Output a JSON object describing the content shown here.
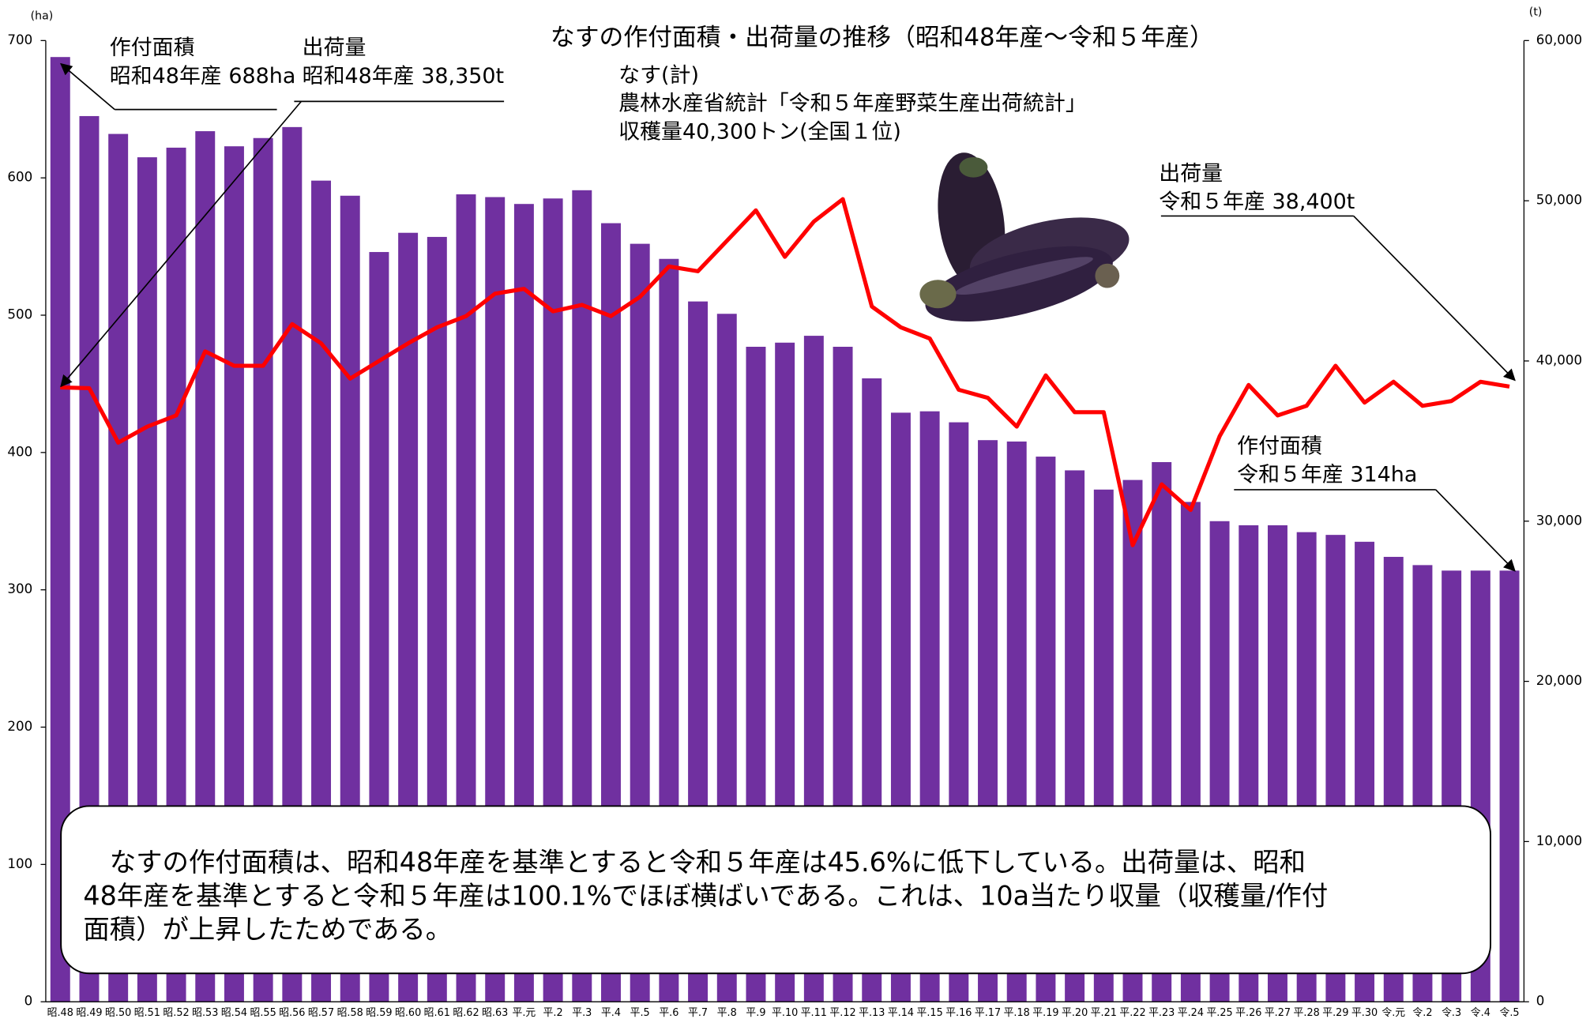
{
  "chart_data": {
    "type": "bar",
    "title": "なすの作付面積・出荷量の推移（昭和48年産～令和５年産）",
    "y_unit": "(ha)",
    "y2_unit": "(t)",
    "categories": [
      "昭.48",
      "昭.49",
      "昭.50",
      "昭.51",
      "昭.52",
      "昭.53",
      "昭.54",
      "昭.55",
      "昭.56",
      "昭.57",
      "昭.58",
      "昭.59",
      "昭.60",
      "昭.61",
      "昭.62",
      "昭.63",
      "平.元",
      "平.2",
      "平.3",
      "平.4",
      "平.5",
      "平.6",
      "平.7",
      "平.8",
      "平.9",
      "平.10",
      "平.11",
      "平.12",
      "平.13",
      "平.14",
      "平.15",
      "平.16",
      "平.17",
      "平.18",
      "平.19",
      "平.20",
      "平.21",
      "平.22",
      "平.23",
      "平.24",
      "平.25",
      "平.26",
      "平.27",
      "平.28",
      "平.29",
      "平.30",
      "令.元",
      "令.2",
      "令.3",
      "令.4",
      "令.5"
    ],
    "series": [
      {
        "type": "bar",
        "color": "#7030a0",
        "values": [
          688,
          645,
          632,
          615,
          622,
          634,
          623,
          629,
          637,
          598,
          587,
          546,
          560,
          557,
          588,
          586,
          581,
          585,
          591,
          567,
          552,
          541,
          510,
          501,
          477,
          480,
          485,
          477,
          454,
          429,
          430,
          422,
          409,
          408,
          397,
          387,
          373,
          380,
          393,
          364,
          350,
          347,
          347,
          342,
          340,
          335,
          324,
          318,
          314,
          314,
          314
        ]
      },
      {
        "type": "line",
        "color": "#ff0000",
        "axis": "y2",
        "values": [
          38350,
          38300,
          34900,
          35900,
          36600,
          40600,
          39700,
          39700,
          42300,
          41100,
          38900,
          40000,
          41100,
          42100,
          42800,
          44200,
          44500,
          43100,
          43500,
          42800,
          44000,
          45900,
          45600,
          47500,
          49400,
          46500,
          48700,
          50100,
          43400,
          42100,
          41400,
          38200,
          37700,
          35900,
          39100,
          36800,
          36800,
          28500,
          32300,
          30700,
          35300,
          38500,
          36600,
          37200,
          39700,
          37400,
          38700,
          37200,
          37500,
          38700,
          38400
        ]
      }
    ],
    "ylim": [
      0,
      700
    ],
    "yticks": [
      0,
      100,
      200,
      300,
      400,
      500,
      600,
      700
    ],
    "y2lim": [
      0,
      60000
    ],
    "y2ticks": [
      0,
      {
        "value": 10000,
        "label": "10,000"
      },
      {
        "value": 20000,
        "label": "20,000"
      },
      {
        "value": 30000,
        "label": "30,000"
      },
      {
        "value": 40000,
        "label": "40,000"
      },
      {
        "value": 50000,
        "label": "50,000"
      },
      {
        "value": 60000,
        "label": "60,000"
      }
    ],
    "annotations": [
      {
        "lines": [
          "作付面積",
          "昭和48年産 688ha"
        ]
      },
      {
        "lines": [
          "出荷量",
          "昭和48年産 38,350t"
        ]
      },
      {
        "lines": [
          "なす(計)",
          "農林水産省統計「令和５年産野菜生産出荷統計」",
          "収穫量40,300トン(全国１位)"
        ]
      },
      {
        "lines": [
          "出荷量",
          "令和５年産 38,400t"
        ]
      },
      {
        "lines": [
          "作付面積",
          "令和５年産 314ha"
        ]
      }
    ],
    "note": [
      "　なすの作付面積は、昭和48年産を基準とすると令和５年産は45.6%に低下している。出荷量は、昭和",
      "48年産を基準とすると令和５年産は100.1%でほぼ横ばいである。これは、10a当たり収量（収穫量/作付",
      "面積）が上昇したためである。"
    ]
  }
}
